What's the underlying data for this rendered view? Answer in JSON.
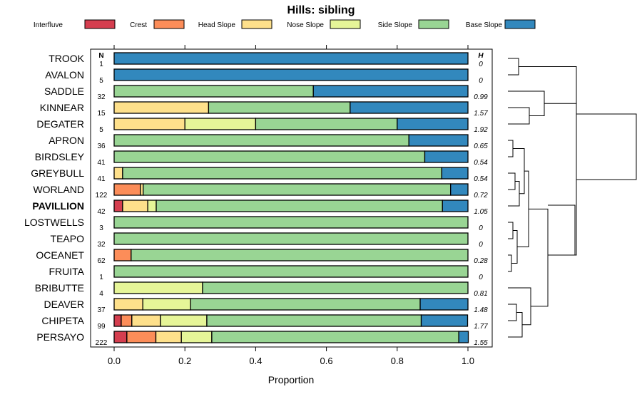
{
  "chart_data": {
    "type": "bar",
    "orientation": "horizontal",
    "stacked": true,
    "title": "Hills: sibling",
    "xlabel": "Proportion",
    "xlim": [
      0,
      1
    ],
    "x_ticks": [
      "0.0",
      "0.2",
      "0.4",
      "0.6",
      "0.8",
      "1.0"
    ],
    "n_header": "N",
    "h_header": "H",
    "legend": [
      "Interfluve",
      "Crest",
      "Head Slope",
      "Nose Slope",
      "Side Slope",
      "Base Slope"
    ],
    "colors": [
      "#d53e4f",
      "#fc8d59",
      "#fee08b",
      "#e6f598",
      "#99d594",
      "#3288bd"
    ],
    "highlight": "PAVILLION",
    "categories": [
      "TROOK",
      "AVALON",
      "SADDLE",
      "KINNEAR",
      "DEGATER",
      "APRON",
      "BIRDSLEY",
      "GREYBULL",
      "WORLAND",
      "PAVILLION",
      "LOSTWELLS",
      "TEAPO",
      "OCEANET",
      "FRUITA",
      "BRIBUTTE",
      "DEAVER",
      "CHIPETA",
      "PERSAYO"
    ],
    "n": [
      "1",
      "5",
      "32",
      "15",
      "5",
      "36",
      "41",
      "41",
      "122",
      "42",
      "3",
      "32",
      "62",
      "1",
      "4",
      "37",
      "99",
      "222"
    ],
    "h": [
      "0",
      "0",
      "0.99",
      "1.57",
      "1.92",
      "0.65",
      "0.54",
      "0.54",
      "0.72",
      "1.05",
      "0",
      "0",
      "0.28",
      "0",
      "0.81",
      "1.48",
      "1.77",
      "1.55"
    ],
    "series": [
      {
        "name": "Interfluve",
        "values": [
          0,
          0,
          0,
          0,
          0,
          0,
          0,
          0,
          0,
          0.024,
          0,
          0,
          0,
          0,
          0,
          0,
          0.02,
          0.036
        ]
      },
      {
        "name": "Crest",
        "values": [
          0,
          0,
          0,
          0,
          0,
          0,
          0,
          0,
          0.074,
          0,
          0,
          0,
          0.048,
          0,
          0,
          0,
          0.03,
          0.082
        ]
      },
      {
        "name": "Head Slope",
        "values": [
          0,
          0,
          0,
          0.267,
          0.2,
          0,
          0,
          0.024,
          0.008,
          0.071,
          0,
          0,
          0,
          0,
          0,
          0.081,
          0.081,
          0.072
        ]
      },
      {
        "name": "Nose Slope",
        "values": [
          0,
          0,
          0,
          0,
          0.2,
          0,
          0,
          0,
          0,
          0.024,
          0,
          0,
          0,
          0,
          0.25,
          0.135,
          0.131,
          0.086
        ]
      },
      {
        "name": "Side Slope",
        "values": [
          0,
          0,
          0.563,
          0.4,
          0.4,
          0.833,
          0.878,
          0.902,
          0.869,
          0.809,
          1,
          1,
          0.952,
          1,
          0.75,
          0.649,
          0.606,
          0.698
        ]
      },
      {
        "name": "Base Slope",
        "values": [
          1,
          1,
          0.437,
          0.333,
          0.2,
          0.167,
          0.122,
          0.074,
          0.049,
          0.072,
          0,
          0,
          0,
          0,
          0,
          0.135,
          0.131,
          0.027
        ]
      }
    ]
  }
}
